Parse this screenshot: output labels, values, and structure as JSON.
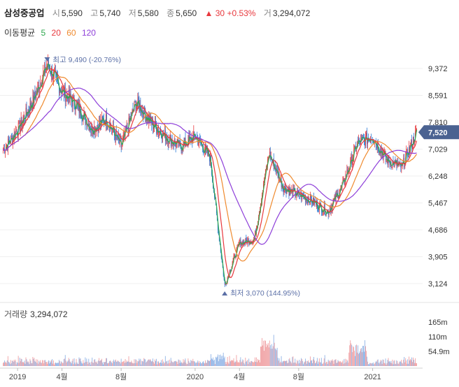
{
  "header": {
    "name": "삼성중공업",
    "open_label": "시",
    "open": "5,590",
    "high_label": "고",
    "high": "5,740",
    "low_label": "저",
    "low": "5,580",
    "close_label": "종",
    "close": "5,650",
    "change": "▲ 30 +0.53%",
    "volume_label": "거",
    "volume": "3,294,072"
  },
  "ma_legend": {
    "label": "이동평균",
    "items": [
      {
        "period": "5",
        "color": "#2fa84f"
      },
      {
        "period": "20",
        "color": "#e8383d"
      },
      {
        "period": "60",
        "color": "#ef8a2e"
      },
      {
        "period": "120",
        "color": "#8e3fd9"
      }
    ]
  },
  "volume_panel": {
    "label": "거래량",
    "value": "3,294,072"
  },
  "colors": {
    "up": "#e8383d",
    "down": "#2b7bd6",
    "current_badge": "#4a6291"
  },
  "chart_data": {
    "type": "line",
    "title": "",
    "x_tick_labels": [
      "2019",
      "4월",
      "8월",
      "2020",
      "4월",
      "8월",
      "2021"
    ],
    "y_tick_labels": [
      "9,372",
      "8,591",
      "7,810",
      "7,029",
      "6,248",
      "5,467",
      "4,686",
      "3,905",
      "3,124"
    ],
    "ylim": [
      3124,
      9372
    ],
    "current_price_label": "7,520",
    "annotations": {
      "high": "최고 9,490 (-20.76%)",
      "low": "최저 3,070 (144.95%)"
    },
    "price_anchors": [
      {
        "x": "2018-12",
        "y": 7000
      },
      {
        "x": "2019-01",
        "y": 7600
      },
      {
        "x": "2019-02",
        "y": 8400
      },
      {
        "x": "2019-03",
        "y": 9490
      },
      {
        "x": "2019-04",
        "y": 8700
      },
      {
        "x": "2019-05",
        "y": 8300
      },
      {
        "x": "2019-06",
        "y": 7600
      },
      {
        "x": "2019-07",
        "y": 7900
      },
      {
        "x": "2019-08",
        "y": 7100
      },
      {
        "x": "2019-09",
        "y": 8400
      },
      {
        "x": "2019-10",
        "y": 7800
      },
      {
        "x": "2019-11",
        "y": 7400
      },
      {
        "x": "2019-12",
        "y": 7100
      },
      {
        "x": "2020-01",
        "y": 7400
      },
      {
        "x": "2020-02",
        "y": 6800
      },
      {
        "x": "2020-03",
        "y": 3070
      },
      {
        "x": "2020-04",
        "y": 4300
      },
      {
        "x": "2020-05",
        "y": 4400
      },
      {
        "x": "2020-06",
        "y": 6900
      },
      {
        "x": "2020-07",
        "y": 5900
      },
      {
        "x": "2020-08",
        "y": 5700
      },
      {
        "x": "2020-09",
        "y": 5500
      },
      {
        "x": "2020-10",
        "y": 5200
      },
      {
        "x": "2020-11",
        "y": 6000
      },
      {
        "x": "2020-12",
        "y": 7200
      },
      {
        "x": "2021-01",
        "y": 7400
      },
      {
        "x": "2021-02",
        "y": 6700
      },
      {
        "x": "2021-03",
        "y": 6500
      },
      {
        "x": "2021-04",
        "y": 7520
      }
    ],
    "volume_tick_labels": [
      "165m",
      "110m",
      "54.9m"
    ],
    "volume_ylim": [
      0,
      180
    ]
  }
}
